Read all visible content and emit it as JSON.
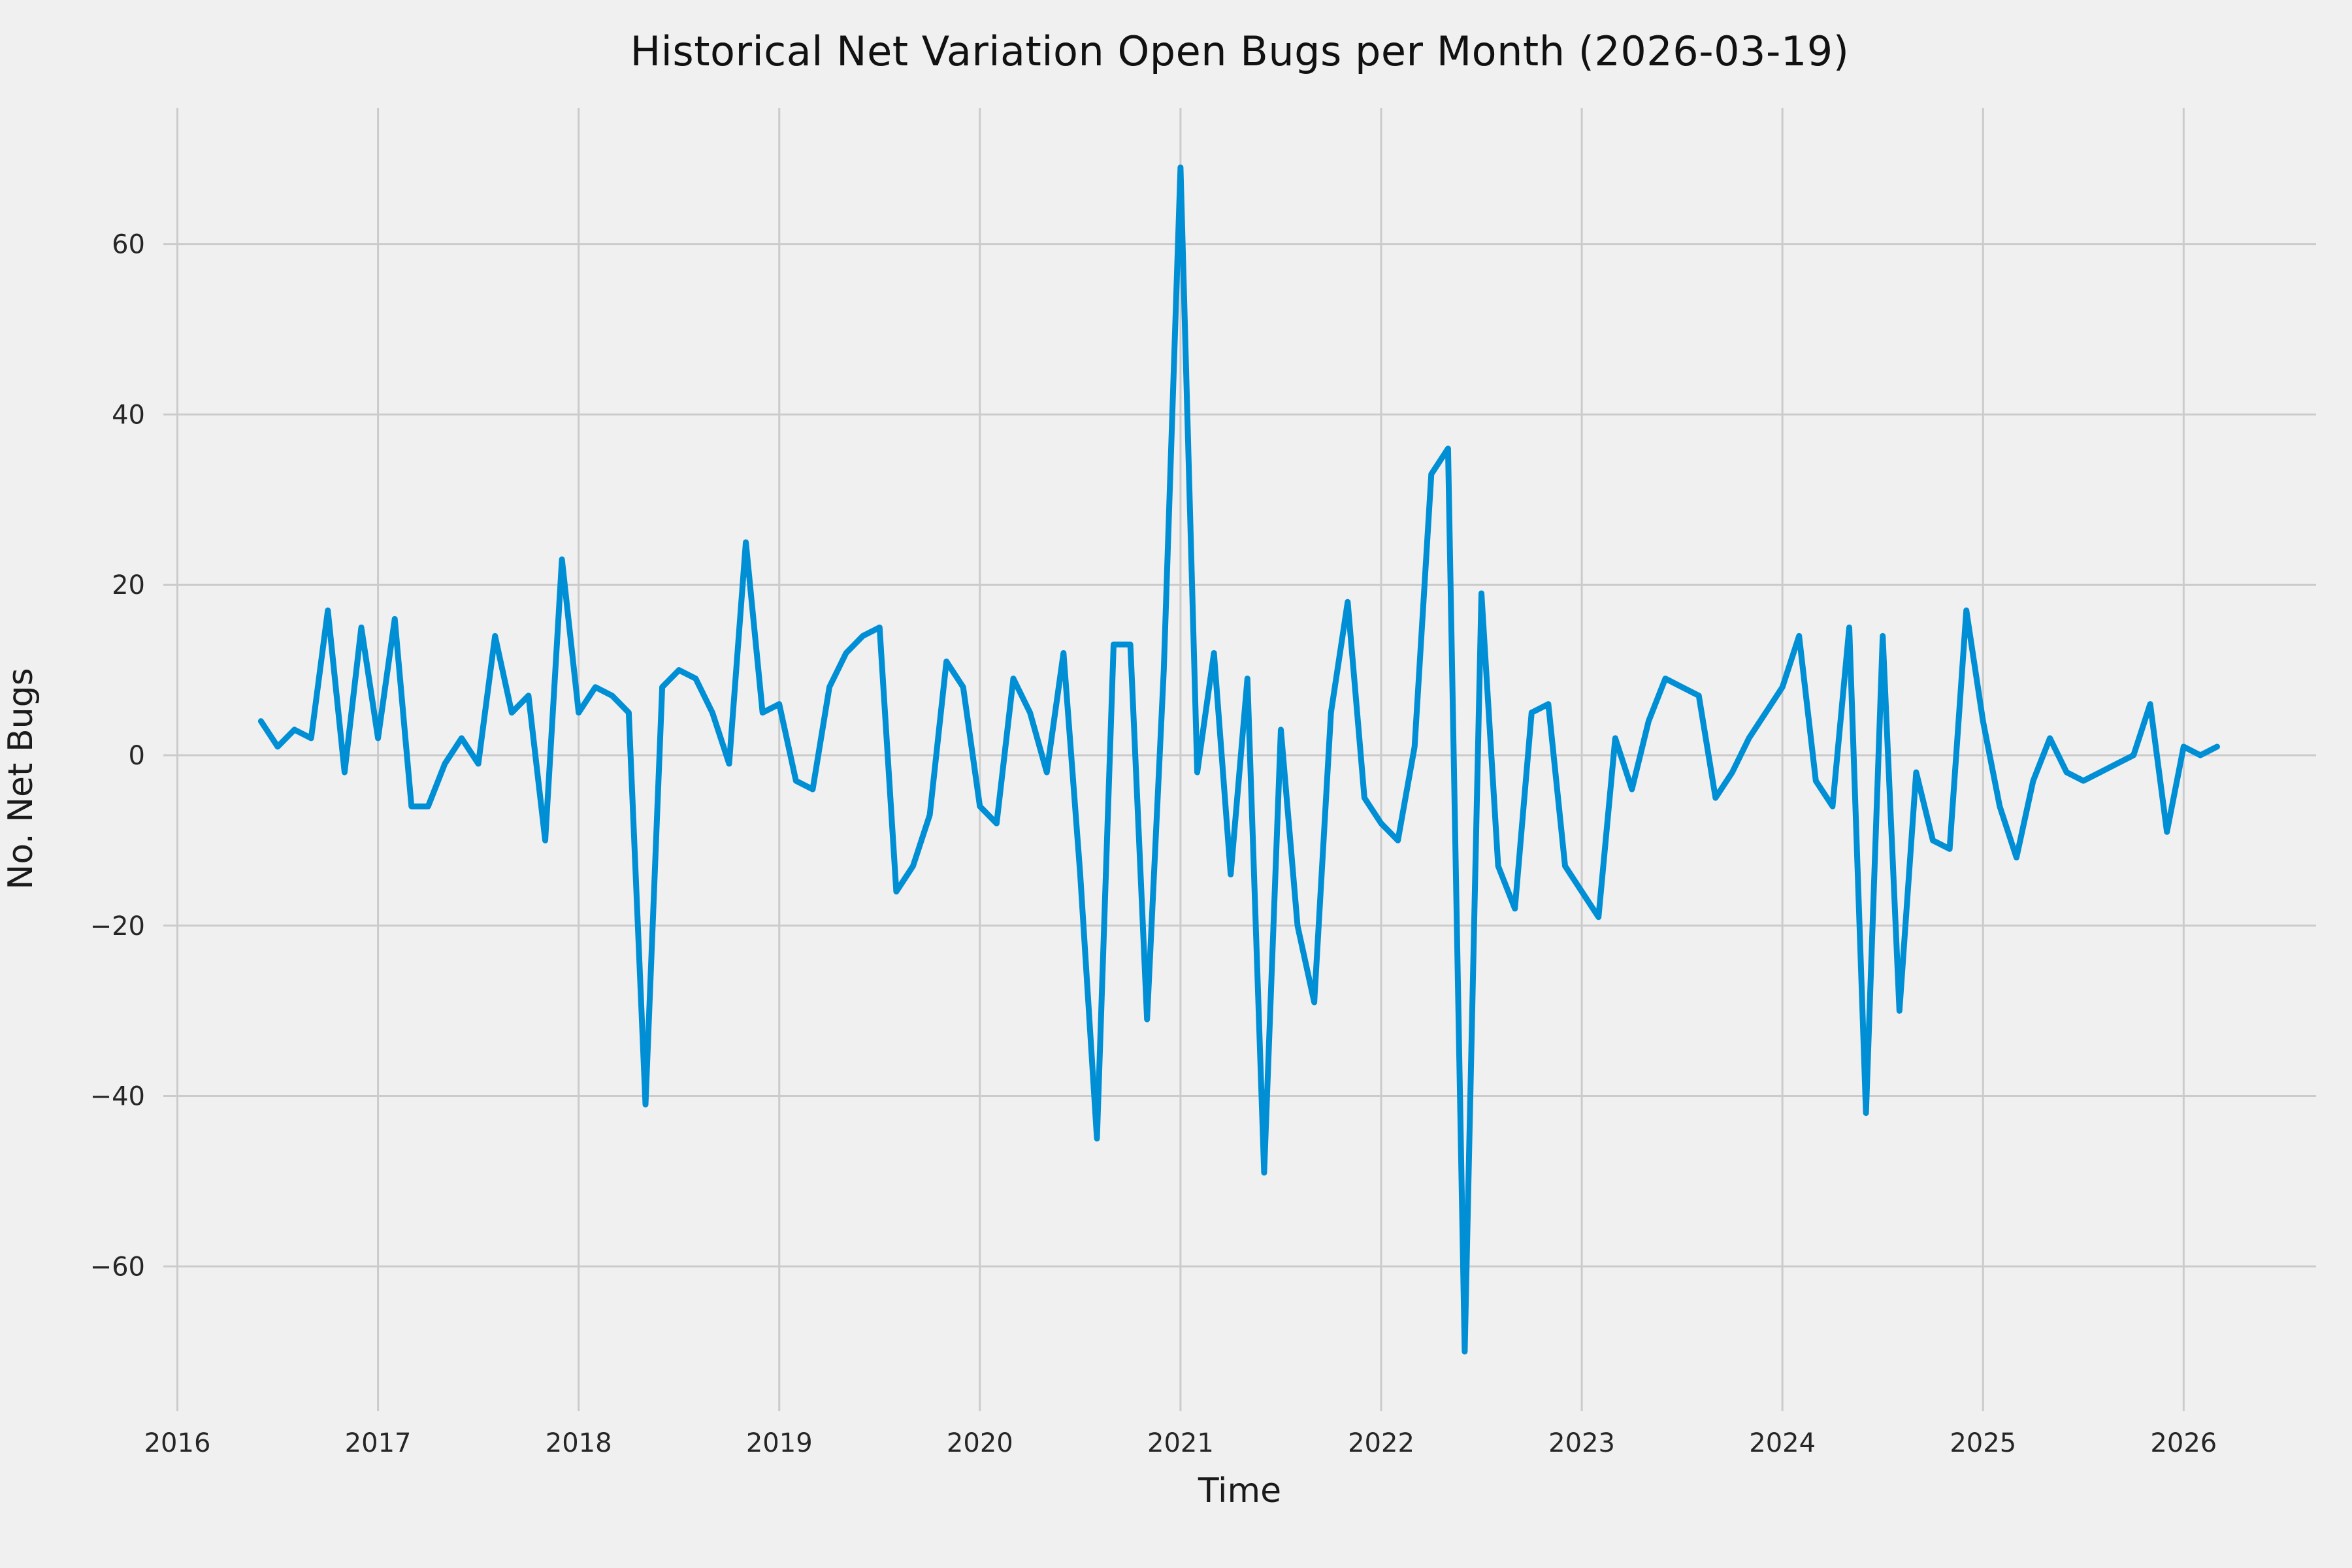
{
  "figure": {
    "title": "Historical Net Variation Open Bugs per Month (2026-03-19)",
    "xlabel": "Time",
    "ylabel": "No. Net Bugs"
  },
  "chart_data": {
    "type": "line",
    "title": "Historical Net Variation Open Bugs per Month (2026-03-19)",
    "xlabel": "Time",
    "ylabel": "No. Net Bugs",
    "legend": "none",
    "grid": true,
    "style": "fivethirtyeight-like gray background with white-gray gridlines, single thick blue line",
    "background_color": "#f0f0f0",
    "grid_color": "#cbcbcb",
    "line_color": "#008fd5",
    "text_color": "#262626",
    "xlim": [
      2015.93,
      2026.66
    ],
    "ylim": [
      -77,
      76
    ],
    "xticks": [
      2016,
      2017,
      2018,
      2019,
      2020,
      2021,
      2022,
      2023,
      2024,
      2025,
      2026
    ],
    "yticks": [
      -60,
      -40,
      -20,
      0,
      20,
      40,
      60
    ],
    "series": [
      {
        "name": "net-open-bugs-per-month",
        "start_year": 2016,
        "start_month": 6,
        "frequency": "monthly",
        "values": [
          4,
          1,
          3,
          2,
          17,
          -2,
          15,
          2,
          16,
          -6,
          -6,
          -1,
          2,
          -1,
          14,
          5,
          7,
          -10,
          23,
          5,
          8,
          7,
          5,
          -41,
          8,
          10,
          9,
          5,
          -1,
          25,
          5,
          6,
          -3,
          -4,
          8,
          12,
          14,
          15,
          -16,
          -13,
          -7,
          11,
          8,
          -6,
          -8,
          9,
          5,
          -2,
          12,
          -14,
          -45,
          13,
          13,
          -31,
          10,
          69,
          -2,
          12,
          -14,
          9,
          -49,
          3,
          -20,
          -29,
          5,
          18,
          -5,
          -8,
          -10,
          1,
          33,
          36,
          -70,
          19,
          -13,
          -18,
          5,
          6,
          -13,
          -16,
          -19,
          2,
          -4,
          4,
          9,
          8,
          7,
          -5,
          -2,
          2,
          5,
          8,
          14,
          -3,
          -6,
          15,
          -42,
          14,
          -30,
          -2,
          -10,
          -11,
          17,
          4,
          -6,
          -12,
          -3,
          2,
          -2,
          -3,
          -2,
          -1,
          0,
          6,
          -9,
          1,
          0,
          1
        ]
      }
    ]
  }
}
